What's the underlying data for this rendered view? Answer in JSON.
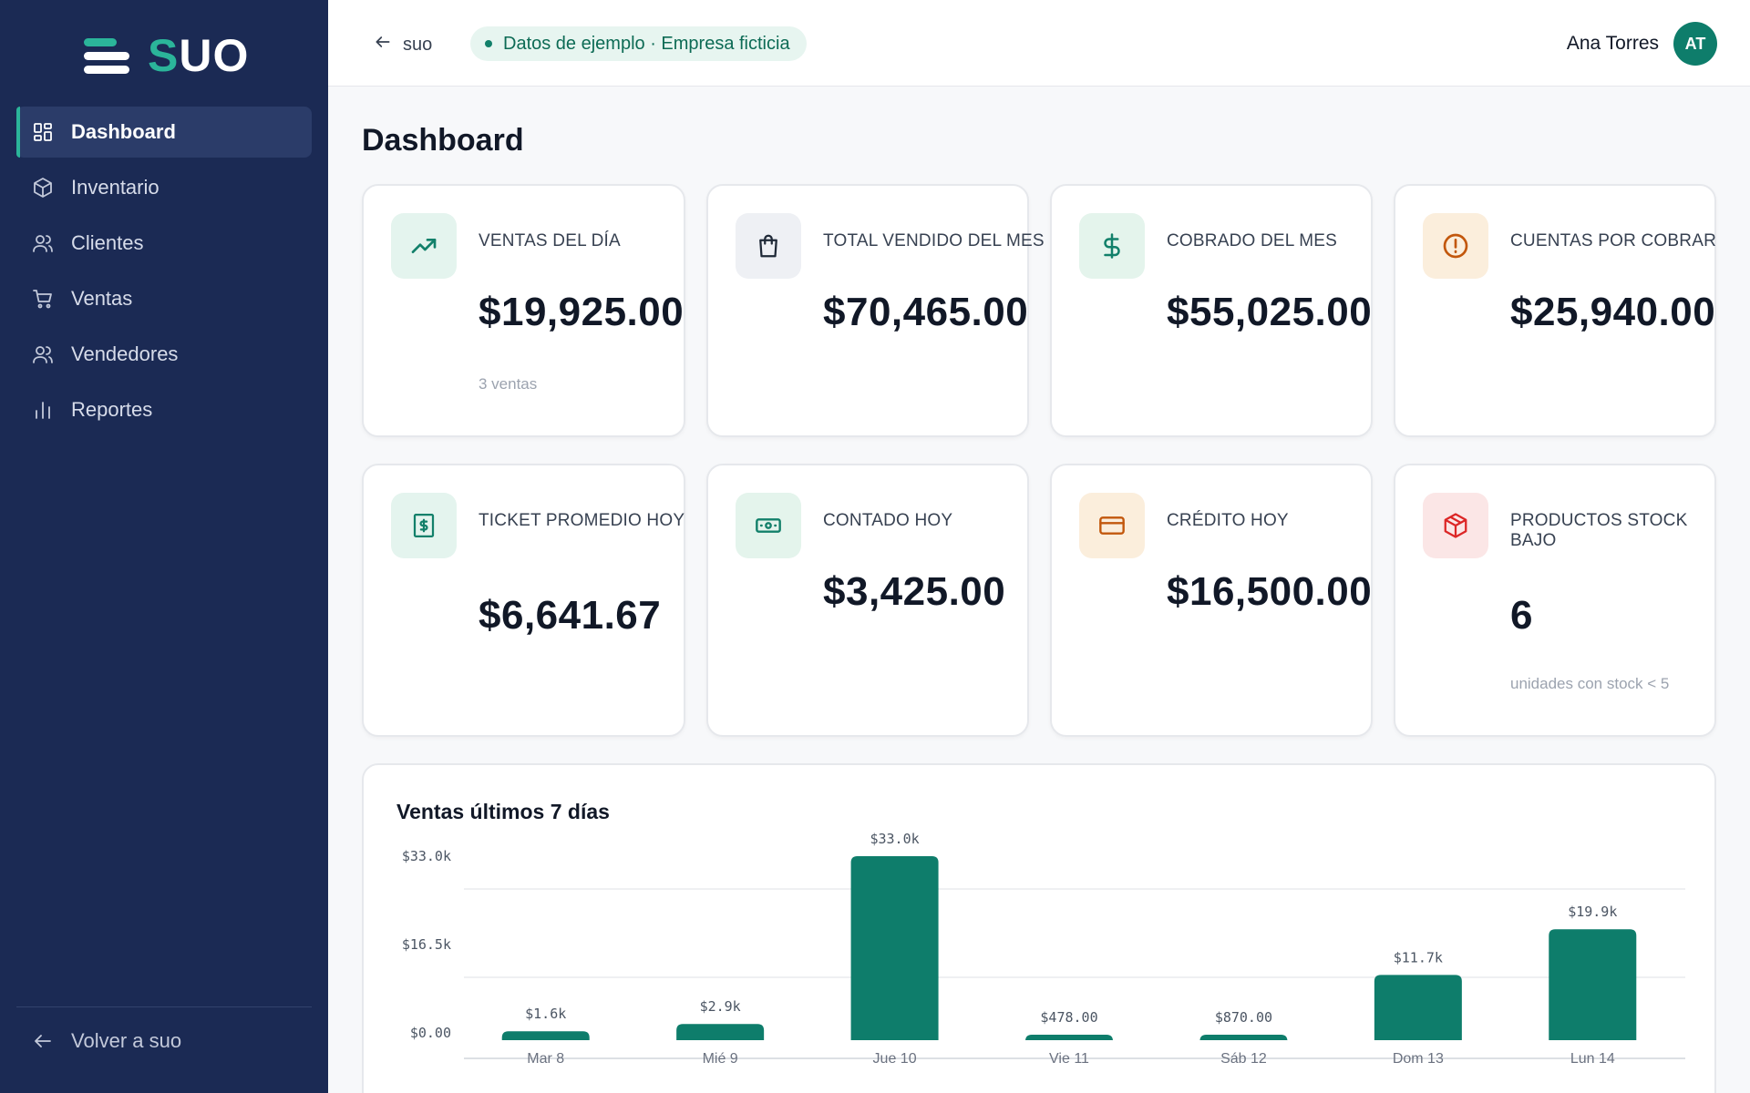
{
  "brand": {
    "name_accent": "S",
    "name_rest": "UO"
  },
  "sidebar": {
    "items": [
      {
        "label": "Dashboard",
        "icon": "dashboard-icon",
        "active": true
      },
      {
        "label": "Inventario",
        "icon": "box-icon",
        "active": false
      },
      {
        "label": "Clientes",
        "icon": "users-icon",
        "active": false
      },
      {
        "label": "Ventas",
        "icon": "cart-icon",
        "active": false
      },
      {
        "label": "Vendedores",
        "icon": "users-icon",
        "active": false
      },
      {
        "label": "Reportes",
        "icon": "bar-chart-icon",
        "active": false
      }
    ],
    "back_label": "Volver a suo"
  },
  "header": {
    "back_label": "suo",
    "demo_badge": "Datos de ejemplo · Empresa ficticia",
    "user_name": "Ana Torres",
    "user_initials": "AT"
  },
  "page": {
    "title": "Dashboard"
  },
  "cards": [
    {
      "label": "VENTAS DEL DÍA",
      "value": "$19,925.00",
      "sub": "3 ventas",
      "icon": "trending-up-icon",
      "tone": "teal"
    },
    {
      "label": "TOTAL VENDIDO DEL MES",
      "value": "$70,465.00",
      "sub": "",
      "icon": "shopping-bag-icon",
      "tone": "gray"
    },
    {
      "label": "COBRADO DEL MES",
      "value": "$55,025.00",
      "sub": "",
      "icon": "dollar-icon",
      "tone": "green"
    },
    {
      "label": "CUENTAS POR COBRAR",
      "value": "$25,940.00",
      "sub": "",
      "icon": "alert-circle-icon",
      "tone": "amber"
    },
    {
      "label": "TICKET PROMEDIO HOY",
      "value": "$6,641.67",
      "sub": "",
      "icon": "receipt-icon",
      "tone": "teal"
    },
    {
      "label": "CONTADO HOY",
      "value": "$3,425.00",
      "sub": "",
      "icon": "cash-icon",
      "tone": "green"
    },
    {
      "label": "CRÉDITO HOY",
      "value": "$16,500.00",
      "sub": "",
      "icon": "credit-card-icon",
      "tone": "amber"
    },
    {
      "label": "PRODUCTOS STOCK BAJO",
      "value": "6",
      "sub": "unidades con stock < 5",
      "icon": "package-icon",
      "tone": "red"
    }
  ],
  "chart_data": {
    "type": "bar",
    "title": "Ventas últimos 7 días",
    "categories": [
      "Mar 8",
      "Mié 9",
      "Jue 10",
      "Vie 11",
      "Sáb 12",
      "Dom 13",
      "Lun 14"
    ],
    "values": [
      1600,
      2900,
      33000,
      478,
      870,
      11700,
      19900
    ],
    "data_labels": [
      "$1.6k",
      "$2.9k",
      "$33.0k",
      "$478.00",
      "$870.00",
      "$11.7k",
      "$19.9k"
    ],
    "y_ticks": [
      "$0.00",
      "$16.5k",
      "$33.0k"
    ],
    "ylim": [
      0,
      33000
    ],
    "bar_color": "#0e7d6b",
    "grid": true
  }
}
